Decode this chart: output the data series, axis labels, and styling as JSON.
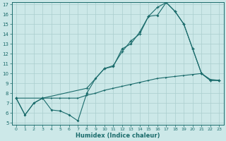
{
  "xlabel": "Humidex (Indice chaleur)",
  "bg_color": "#cce8e8",
  "line_color": "#1a6b6b",
  "grid_color": "#aacece",
  "ylim": [
    5,
    17
  ],
  "xlim": [
    -0.5,
    23.5
  ],
  "yticks": [
    5,
    6,
    7,
    8,
    9,
    10,
    11,
    12,
    13,
    14,
    15,
    16,
    17
  ],
  "xticks": [
    0,
    1,
    2,
    3,
    4,
    5,
    6,
    7,
    8,
    9,
    10,
    11,
    12,
    13,
    14,
    15,
    16,
    17,
    18,
    19,
    20,
    21,
    22,
    23
  ],
  "line1_x": [
    0,
    1,
    2,
    3,
    4,
    5,
    6,
    7,
    8,
    9,
    10,
    11,
    12,
    13,
    14,
    15,
    16,
    17,
    18,
    19,
    20,
    21,
    22,
    23
  ],
  "line1_y": [
    7.5,
    5.8,
    7.0,
    7.5,
    6.3,
    6.2,
    5.8,
    5.2,
    8.0,
    9.5,
    10.5,
    10.7,
    12.5,
    13.0,
    14.2,
    15.8,
    15.9,
    17.2,
    16.3,
    15.0,
    12.5,
    10.0,
    9.3,
    9.3
  ],
  "line2_x": [
    0,
    3,
    8,
    10,
    11,
    12,
    13,
    14,
    15,
    16,
    17,
    18,
    19,
    20,
    21,
    22,
    23
  ],
  "line2_y": [
    7.5,
    7.5,
    8.5,
    10.5,
    10.8,
    12.2,
    13.3,
    14.0,
    15.8,
    16.7,
    17.2,
    16.3,
    15.0,
    12.5,
    10.0,
    9.3,
    9.3
  ],
  "line3_x": [
    0,
    1,
    2,
    3,
    4,
    5,
    6,
    7,
    8,
    9,
    10,
    11,
    12,
    13,
    14,
    15,
    16,
    17,
    18,
    19,
    20,
    21,
    22,
    23
  ],
  "line3_y": [
    7.5,
    5.8,
    7.0,
    7.5,
    7.5,
    7.5,
    7.5,
    7.5,
    7.8,
    8.0,
    8.3,
    8.5,
    8.7,
    8.9,
    9.1,
    9.3,
    9.5,
    9.6,
    9.7,
    9.8,
    9.9,
    10.0,
    9.4,
    9.3
  ]
}
